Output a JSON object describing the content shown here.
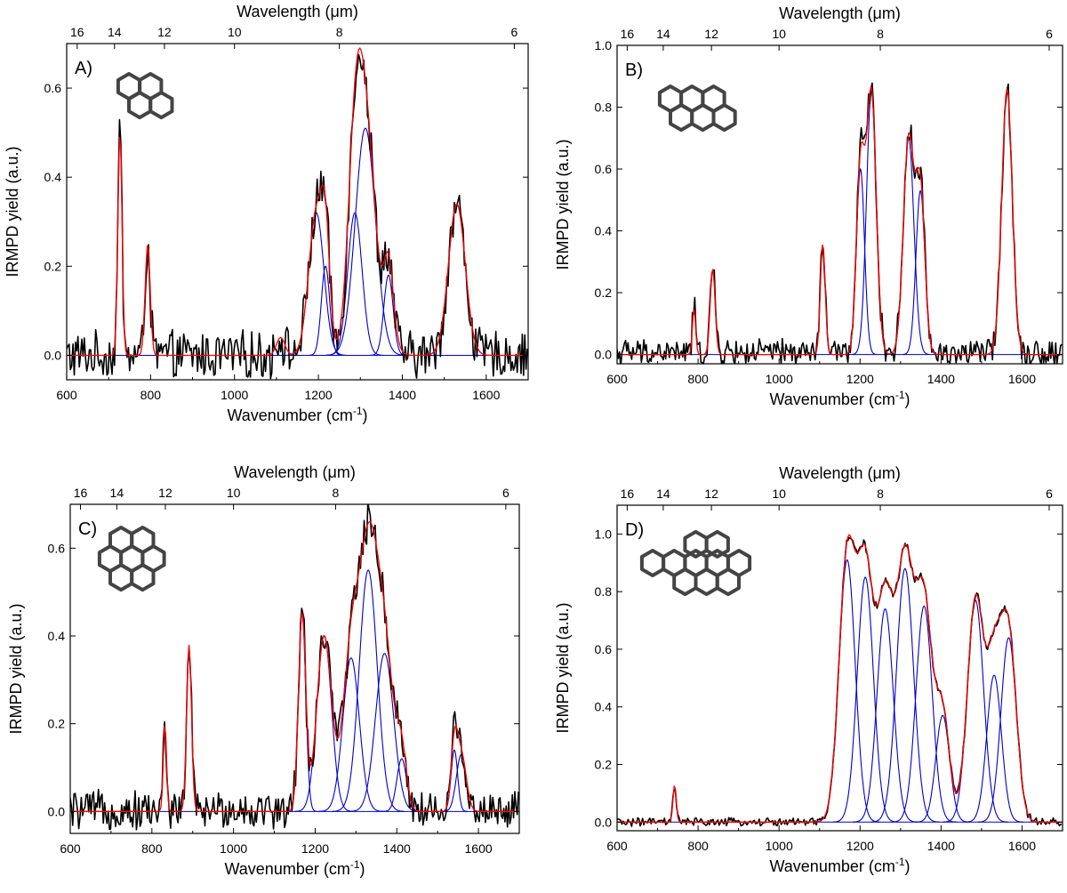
{
  "figure": {
    "colors": {
      "experimental": "#000000",
      "fit": "#ff0000",
      "component": "#0000cc",
      "zero_line": "#0000cc"
    },
    "molecule_icons": [
      "phenanthrene-like-molecule",
      "perylene-like-molecule",
      "coronene-like-molecule",
      "dibenzocoronene-like-molecule"
    ]
  },
  "chart_data": [
    {
      "type": "line",
      "panel_label": "A)",
      "xlabel": "Wavenumber (cm",
      "xlabel_sup": "-1",
      "xlabel_end": ")",
      "ylabel": "IRMPD yield (a.u.)",
      "top_label": "Wavelength (μm)",
      "xlim": [
        600,
        1700
      ],
      "ylim": [
        -0.055,
        0.7
      ],
      "xticks": [
        "600",
        "800",
        "1000",
        "1200",
        "1400",
        "1600"
      ],
      "yticks": [
        "0.0",
        "0.2",
        "0.4",
        "0.6"
      ],
      "top_ticks": [
        "16",
        "14",
        "12",
        "10",
        "8",
        "6"
      ],
      "fit_peaks": [
        [
          727,
          0.5,
          5
        ],
        [
          793,
          0.25,
          6
        ],
        [
          1110,
          0.04,
          10
        ],
        [
          1380,
          0.02,
          14
        ]
      ],
      "components": [
        [
          1195,
          0.32,
          18
        ],
        [
          1217,
          0.2,
          10
        ],
        [
          1287,
          0.32,
          17
        ],
        [
          1312,
          0.51,
          24
        ],
        [
          1367,
          0.18,
          11
        ],
        [
          1530,
          0.34,
          20
        ]
      ],
      "noise": 0.022,
      "noise_shift": 0.0
    },
    {
      "type": "line",
      "panel_label": "B)",
      "xlabel": "Wavenumber (cm",
      "xlabel_sup": "-1",
      "xlabel_end": ")",
      "ylabel": "IRMPD yield (a.u.)",
      "top_label": "Wavelength (μm)",
      "xlim": [
        600,
        1700
      ],
      "ylim": [
        -0.03,
        1.0
      ],
      "xticks": [
        "600",
        "800",
        "1000",
        "1200",
        "1400",
        "1600"
      ],
      "yticks": [
        "0.0",
        "0.2",
        "0.4",
        "0.6",
        "0.8",
        "1.0"
      ],
      "top_ticks": [
        "16",
        "14",
        "12",
        "10",
        "8",
        "6"
      ],
      "fit_peaks": [
        [
          790,
          0.15,
          4
        ],
        [
          836,
          0.28,
          6
        ],
        [
          1108,
          0.36,
          6
        ],
        [
          1563,
          0.86,
          13
        ]
      ],
      "components": [
        [
          1201,
          0.6,
          10
        ],
        [
          1228,
          0.85,
          12
        ],
        [
          1320,
          0.7,
          13
        ],
        [
          1349,
          0.53,
          11
        ]
      ],
      "noise": 0.018,
      "noise_shift": 0.02
    },
    {
      "type": "line",
      "panel_label": "C)",
      "xlabel": "Wavenumber (cm",
      "xlabel_sup": "-1",
      "xlabel_end": ")",
      "ylabel": "IRMPD yield (a.u.)",
      "top_label": "Wavelength (μm)",
      "xlim": [
        600,
        1700
      ],
      "ylim": [
        -0.05,
        0.7
      ],
      "xticks": [
        "600",
        "800",
        "1000",
        "1200",
        "1400",
        "1600"
      ],
      "yticks": [
        "0.0",
        "0.2",
        "0.4",
        "0.6"
      ],
      "top_ticks": [
        "16",
        "14",
        "12",
        "10",
        "8",
        "6"
      ],
      "fit_peaks": [
        [
          832,
          0.2,
          4
        ],
        [
          891,
          0.38,
          6
        ]
      ],
      "components": [
        [
          1168,
          0.45,
          9
        ],
        [
          1222,
          0.4,
          18
        ],
        [
          1288,
          0.35,
          20
        ],
        [
          1330,
          0.55,
          22
        ],
        [
          1370,
          0.36,
          22
        ],
        [
          1412,
          0.12,
          12
        ],
        [
          1541,
          0.14,
          8
        ],
        [
          1558,
          0.13,
          12
        ]
      ],
      "noise": 0.018,
      "noise_shift": 0.01
    },
    {
      "type": "line",
      "panel_label": "D)",
      "xlabel": "Wavenumber (cm",
      "xlabel_sup": "-1",
      "xlabel_end": ")",
      "ylabel": "IRMPD yield (a.u.)",
      "top_label": "Wavelength (μm)",
      "xlim": [
        600,
        1700
      ],
      "ylim": [
        -0.03,
        1.1
      ],
      "xticks": [
        "600",
        "800",
        "1000",
        "1200",
        "1400",
        "1600"
      ],
      "yticks": [
        "0.0",
        "0.2",
        "0.4",
        "0.6",
        "0.8",
        "1.0"
      ],
      "top_ticks": [
        "16",
        "14",
        "12",
        "10",
        "8",
        "6"
      ],
      "fit_peaks": [
        [
          742,
          0.13,
          4
        ]
      ],
      "components": [
        [
          1168,
          0.91,
          20
        ],
        [
          1213,
          0.85,
          20
        ],
        [
          1262,
          0.74,
          20
        ],
        [
          1311,
          0.88,
          21
        ],
        [
          1358,
          0.75,
          20
        ],
        [
          1404,
          0.37,
          17
        ],
        [
          1485,
          0.77,
          20
        ],
        [
          1531,
          0.51,
          18
        ],
        [
          1567,
          0.64,
          19
        ]
      ],
      "noise": 0.006,
      "noise_shift": 0.0
    }
  ]
}
